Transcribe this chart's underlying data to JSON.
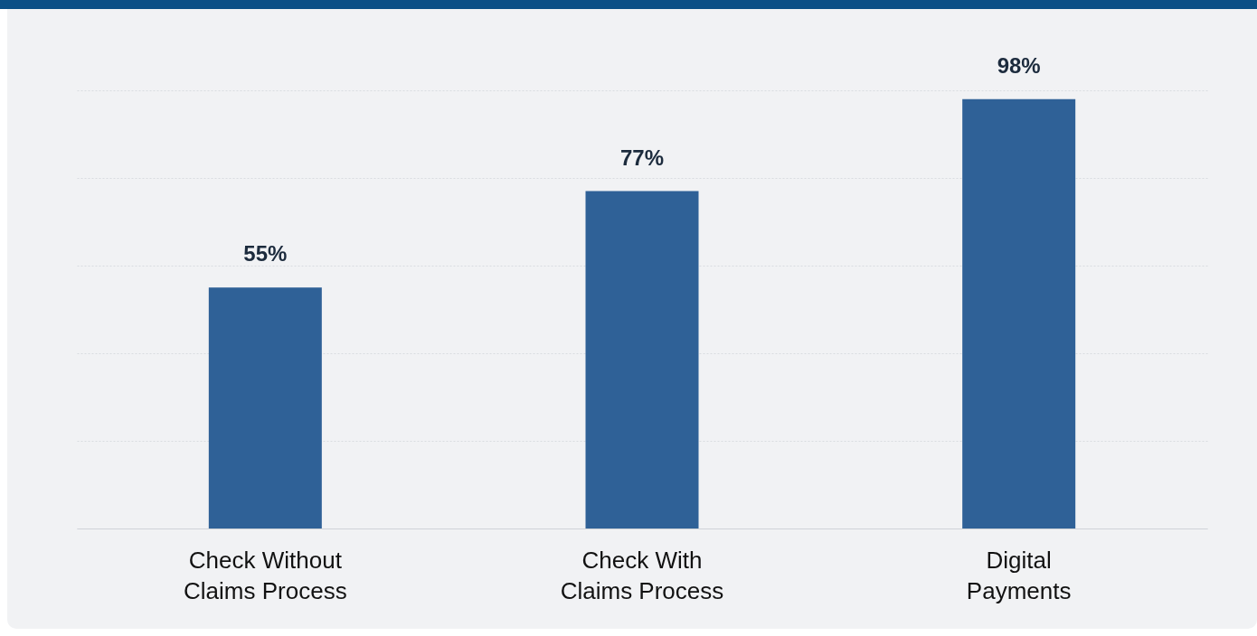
{
  "chart_data": {
    "type": "bar",
    "categories": [
      "Check Without Claims Process",
      "Check With Claims Process",
      "Digital Payments"
    ],
    "values": [
      55,
      77,
      98
    ],
    "value_labels": [
      "55%",
      "77%",
      "98%"
    ],
    "color": "#2f6197",
    "ylim": [
      0,
      100
    ],
    "yticks": [
      {
        "value": 0,
        "label": null
      },
      {
        "value": 20,
        "label": null
      },
      {
        "value": 40,
        "label": null
      },
      {
        "value": 60,
        "label": null
      },
      {
        "value": 80,
        "label": null
      },
      {
        "value": 100,
        "label": null
      }
    ],
    "grid": "y",
    "tick_labels": "x"
  }
}
